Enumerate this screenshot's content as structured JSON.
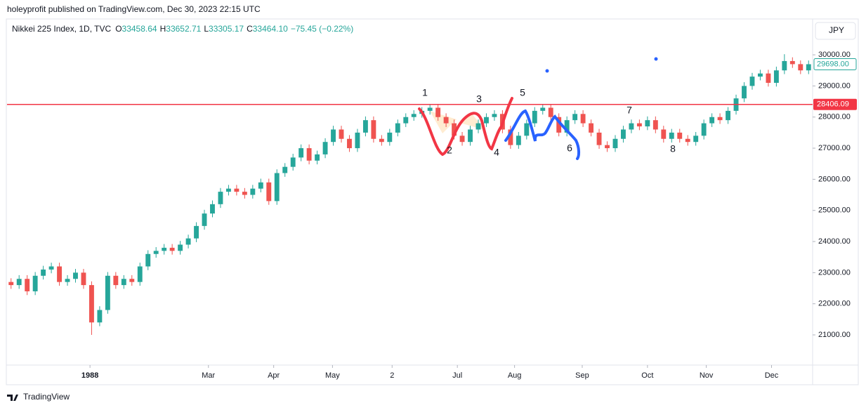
{
  "header": {
    "publisher": "holeyprofit published on TradingView.com, Dec 30, 2023 22:15 UTC"
  },
  "chart_data": {
    "type": "candlestick",
    "legend": {
      "symbol": "Nikkei 225 Index, 1D, TVC",
      "o_label": "O",
      "o": "33458.64",
      "h_label": "H",
      "h": "33652.71",
      "l_label": "L",
      "l": "33305.17",
      "c_label": "C",
      "c": "33464.10",
      "change": "−75.45 (−0.22%)"
    },
    "currency": "JPY",
    "up_color": "#26a69a",
    "down_color": "#ef5350",
    "xlim": [
      0,
      100
    ],
    "xticks": [
      {
        "value": 10.3,
        "label": "1988"
      },
      {
        "value": 25,
        "label": "Mar"
      },
      {
        "value": 33.1,
        "label": "Apr"
      },
      {
        "value": 40.4,
        "label": "May"
      },
      {
        "value": 47.8,
        "label": "2"
      },
      {
        "value": 55.9,
        "label": "Jul"
      },
      {
        "value": 63,
        "label": "Aug"
      },
      {
        "value": 71.4,
        "label": "Sep"
      },
      {
        "value": 79.5,
        "label": "Oct"
      },
      {
        "value": 86.8,
        "label": "Nov"
      },
      {
        "value": 94.9,
        "label": "Dec"
      }
    ],
    "ylim": [
      20030,
      31130
    ],
    "yticks": [
      {
        "value": 21000,
        "label": "21000.00"
      },
      {
        "value": 22000,
        "label": "22000.00"
      },
      {
        "value": 23000,
        "label": "23000.00"
      },
      {
        "value": 24000,
        "label": "24000.00"
      },
      {
        "value": 25000,
        "label": "25000.00"
      },
      {
        "value": 26000,
        "label": "26000.00"
      },
      {
        "value": 27000,
        "label": "27000.00"
      },
      {
        "value": 28000,
        "label": "28000.00"
      },
      {
        "value": 29000,
        "label": "29000.00"
      },
      {
        "value": 30000,
        "label": "30000.00"
      }
    ],
    "last_price": {
      "value": 29698,
      "label": "29698.00"
    },
    "hline": {
      "value": 28406.09,
      "label": "28406.09",
      "color": "#f23645"
    },
    "annotations": [
      "1",
      "2",
      "3",
      "4",
      "5",
      "6",
      "7",
      "8"
    ],
    "ohlc": [
      [
        22700,
        22820,
        22480,
        22600
      ],
      [
        22600,
        22920,
        22480,
        22800
      ],
      [
        22800,
        22920,
        22280,
        22400
      ],
      [
        22400,
        23020,
        22280,
        22900
      ],
      [
        22900,
        23220,
        22780,
        23100
      ],
      [
        23100,
        23320,
        22980,
        23200
      ],
      [
        23200,
        23320,
        22580,
        22700
      ],
      [
        22700,
        22920,
        22580,
        22800
      ],
      [
        22800,
        23120,
        22680,
        23000
      ],
      [
        23000,
        23120,
        22480,
        22600
      ],
      [
        22600,
        22720,
        21000,
        21400
      ],
      [
        21400,
        21920,
        21280,
        21800
      ],
      [
        21800,
        23020,
        21680,
        22900
      ],
      [
        22900,
        23020,
        22480,
        22600
      ],
      [
        22600,
        22920,
        22480,
        22800
      ],
      [
        22800,
        22920,
        22580,
        22700
      ],
      [
        22700,
        23320,
        22580,
        23200
      ],
      [
        23200,
        23720,
        23080,
        23600
      ],
      [
        23600,
        23820,
        23480,
        23700
      ],
      [
        23700,
        23920,
        23580,
        23800
      ],
      [
        23800,
        23920,
        23580,
        23700
      ],
      [
        23700,
        24020,
        23580,
        23900
      ],
      [
        23900,
        24220,
        23780,
        24100
      ],
      [
        24100,
        24620,
        23980,
        24500
      ],
      [
        24500,
        25020,
        24380,
        24900
      ],
      [
        24900,
        25320,
        24780,
        25200
      ],
      [
        25200,
        25720,
        25080,
        25600
      ],
      [
        25600,
        25820,
        25480,
        25700
      ],
      [
        25700,
        25820,
        25480,
        25600
      ],
      [
        25600,
        25720,
        25380,
        25500
      ],
      [
        25500,
        25820,
        25380,
        25700
      ],
      [
        25700,
        26020,
        25580,
        25900
      ],
      [
        25900,
        26020,
        25180,
        25300
      ],
      [
        25300,
        26320,
        25180,
        26200
      ],
      [
        26200,
        26520,
        26080,
        26400
      ],
      [
        26400,
        26820,
        26280,
        26700
      ],
      [
        26700,
        27120,
        26580,
        27000
      ],
      [
        27000,
        27120,
        26480,
        26600
      ],
      [
        26600,
        26920,
        26480,
        26800
      ],
      [
        26800,
        27320,
        26680,
        27200
      ],
      [
        27200,
        27720,
        27080,
        27600
      ],
      [
        27600,
        27720,
        27180,
        27300
      ],
      [
        27300,
        27420,
        26880,
        27000
      ],
      [
        27000,
        27620,
        26880,
        27500
      ],
      [
        27500,
        28020,
        27380,
        27900
      ],
      [
        27900,
        28020,
        27180,
        27300
      ],
      [
        27300,
        27420,
        27080,
        27200
      ],
      [
        27200,
        27620,
        27080,
        27500
      ],
      [
        27500,
        27920,
        27380,
        27800
      ],
      [
        27800,
        28120,
        27680,
        28000
      ],
      [
        28000,
        28220,
        27880,
        28100
      ],
      [
        28100,
        28320,
        27980,
        28200
      ],
      [
        28200,
        28420,
        28080,
        28300
      ],
      [
        28300,
        28420,
        27880,
        28000
      ],
      [
        28000,
        28120,
        27680,
        27800
      ],
      [
        27800,
        27920,
        27280,
        27400
      ],
      [
        27400,
        27520,
        27080,
        27200
      ],
      [
        27200,
        27720,
        27080,
        27600
      ],
      [
        27600,
        27920,
        27480,
        27800
      ],
      [
        27800,
        28120,
        27680,
        28000
      ],
      [
        28000,
        28220,
        27880,
        28100
      ],
      [
        28100,
        28220,
        27480,
        27600
      ],
      [
        27600,
        27720,
        26980,
        27100
      ],
      [
        27100,
        27520,
        26980,
        27400
      ],
      [
        27400,
        27920,
        27280,
        27800
      ],
      [
        27800,
        28320,
        27680,
        28200
      ],
      [
        28200,
        28420,
        28080,
        28300
      ],
      [
        28300,
        28420,
        27880,
        28000
      ],
      [
        28000,
        28120,
        27380,
        27500
      ],
      [
        27500,
        28020,
        27380,
        27900
      ],
      [
        27900,
        28220,
        27780,
        28100
      ],
      [
        28100,
        28220,
        27680,
        27800
      ],
      [
        27800,
        27920,
        27380,
        27500
      ],
      [
        27500,
        27620,
        26980,
        27100
      ],
      [
        27100,
        27220,
        26880,
        27000
      ],
      [
        27000,
        27420,
        26880,
        27300
      ],
      [
        27300,
        27720,
        27180,
        27600
      ],
      [
        27600,
        27920,
        27480,
        27800
      ],
      [
        27800,
        27920,
        27580,
        27700
      ],
      [
        27700,
        28020,
        27580,
        27900
      ],
      [
        27900,
        28020,
        27480,
        27600
      ],
      [
        27600,
        27720,
        27180,
        27300
      ],
      [
        27300,
        27620,
        27180,
        27500
      ],
      [
        27500,
        27620,
        27180,
        27300
      ],
      [
        27300,
        27420,
        27080,
        27200
      ],
      [
        27200,
        27520,
        27080,
        27400
      ],
      [
        27400,
        27920,
        27280,
        27800
      ],
      [
        27800,
        28120,
        27680,
        28000
      ],
      [
        28000,
        28120,
        27780,
        27900
      ],
      [
        27900,
        28320,
        27780,
        28200
      ],
      [
        28200,
        28720,
        28080,
        28600
      ],
      [
        28600,
        29120,
        28480,
        29000
      ],
      [
        29000,
        29420,
        28880,
        29300
      ],
      [
        29300,
        29520,
        29180,
        29400
      ],
      [
        29400,
        29520,
        28980,
        29100
      ],
      [
        29100,
        29620,
        28980,
        29500
      ],
      [
        29500,
        30020,
        29380,
        29800
      ],
      [
        29800,
        29920,
        29580,
        29700
      ],
      [
        29700,
        29820,
        29380,
        29500
      ],
      [
        29500,
        29818,
        29380,
        29698
      ]
    ]
  },
  "footer": {
    "brand": "TradingView"
  }
}
